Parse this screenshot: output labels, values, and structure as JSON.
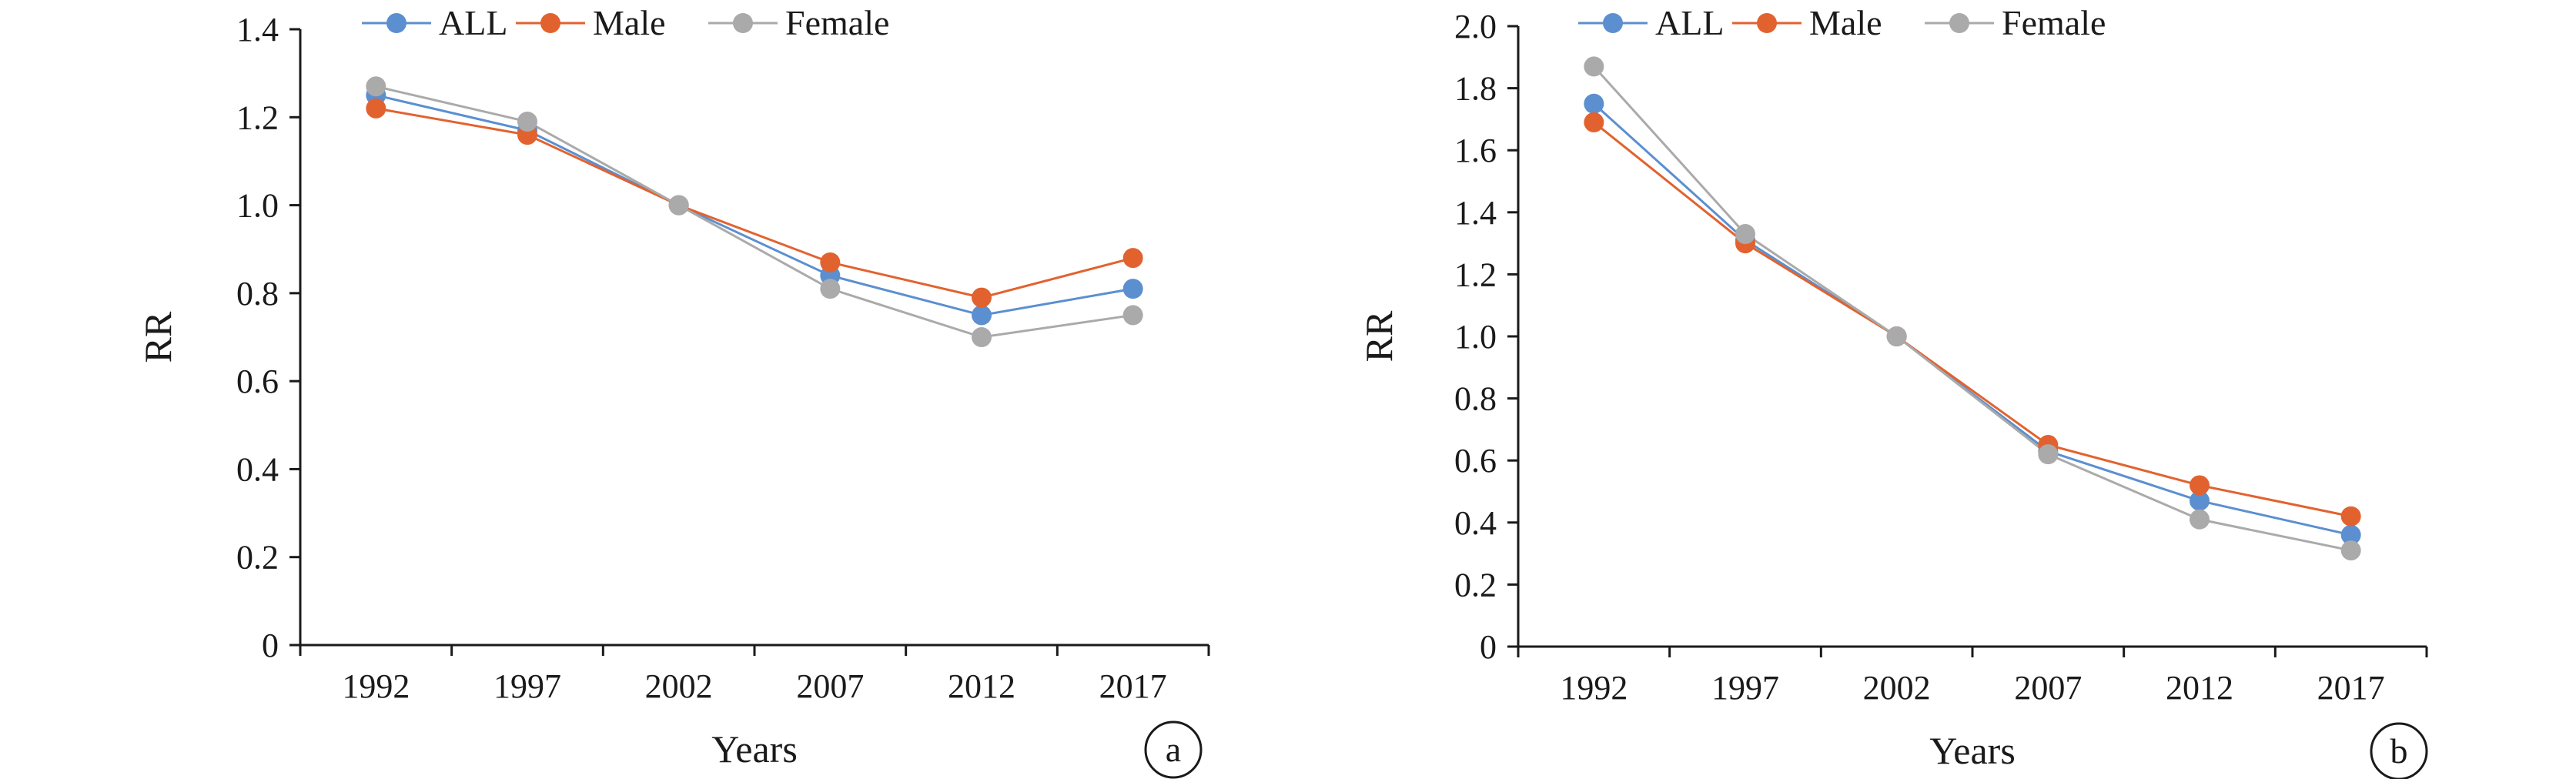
{
  "colors": {
    "ALL": "#5b8fd0",
    "Male": "#e2622f",
    "Female": "#aaaaaa",
    "axis": "#1a1a1a"
  },
  "chart_data": [
    {
      "type": "line",
      "panel_label": "a",
      "xlabel": "Years",
      "ylabel": "RR",
      "categories": [
        "1992",
        "1997",
        "2002",
        "2007",
        "2012",
        "2017"
      ],
      "ylim": [
        0,
        1.4
      ],
      "yticks": [
        "0",
        "0.2",
        "0.4",
        "0.6",
        "0.8",
        "1.0",
        "1.2",
        "1.4"
      ],
      "legend_position": "top",
      "grid": false,
      "series": [
        {
          "name": "ALL",
          "values": [
            1.25,
            1.17,
            1.0,
            0.84,
            0.75,
            0.81
          ]
        },
        {
          "name": "Male",
          "values": [
            1.22,
            1.16,
            1.0,
            0.87,
            0.79,
            0.88
          ]
        },
        {
          "name": "Female",
          "values": [
            1.27,
            1.19,
            1.0,
            0.81,
            0.7,
            0.75
          ]
        }
      ]
    },
    {
      "type": "line",
      "panel_label": "b",
      "xlabel": "Years",
      "ylabel": "RR",
      "categories": [
        "1992",
        "1997",
        "2002",
        "2007",
        "2012",
        "2017"
      ],
      "ylim": [
        0,
        2.0
      ],
      "yticks": [
        "0",
        "0.2",
        "0.4",
        "0.6",
        "0.8",
        "1.0",
        "1.2",
        "1.4",
        "1.6",
        "1.8",
        "2.0"
      ],
      "legend_position": "top",
      "grid": false,
      "series": [
        {
          "name": "ALL",
          "values": [
            1.75,
            1.31,
            1.0,
            0.63,
            0.47,
            0.36
          ]
        },
        {
          "name": "Male",
          "values": [
            1.69,
            1.3,
            1.0,
            0.65,
            0.52,
            0.42
          ]
        },
        {
          "name": "Female",
          "values": [
            1.87,
            1.33,
            1.0,
            0.62,
            0.41,
            0.31
          ]
        }
      ]
    }
  ]
}
